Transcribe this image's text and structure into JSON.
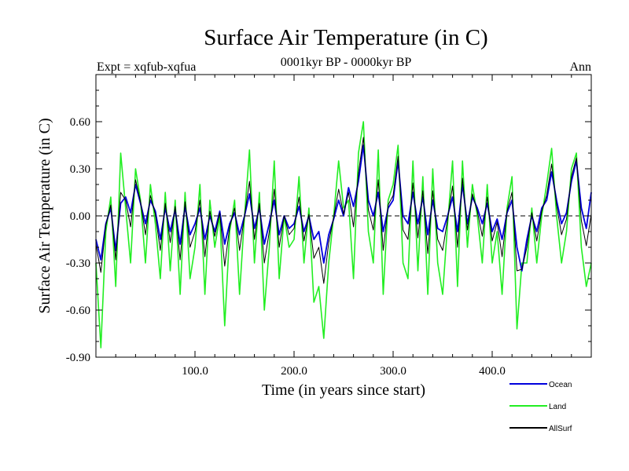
{
  "chart_data": {
    "type": "line",
    "title": "Surface Air Temperature (in C)",
    "subtitle": "0001kyr BP - 0000kyr BP",
    "left_label": "Expt = xqfub-xqfua",
    "right_label": "Ann",
    "xlabel": "Time (in years since start)",
    "ylabel": "Surface Air Temperature (in C)",
    "xlim": [
      0,
      500
    ],
    "ylim": [
      -0.9,
      0.9
    ],
    "x_ticks": [
      100,
      200,
      300,
      400
    ],
    "x_tick_labels": [
      "100.0",
      "200.0",
      "300.0",
      "400.0"
    ],
    "y_ticks": [
      -0.9,
      -0.6,
      -0.3,
      0.0,
      0.3,
      0.6
    ],
    "y_tick_labels": [
      "-0.90",
      "-0.60",
      "-0.30",
      "0.00",
      "0.30",
      "0.60"
    ],
    "zero_line": true,
    "legend_position": "bottom-right",
    "series": [
      {
        "name": "Ocean",
        "color": "#0000dd",
        "x": [
          0,
          5,
          10,
          15,
          20,
          25,
          30,
          35,
          40,
          45,
          50,
          55,
          60,
          65,
          70,
          75,
          80,
          85,
          90,
          95,
          100,
          105,
          110,
          115,
          120,
          125,
          130,
          135,
          140,
          145,
          150,
          155,
          160,
          165,
          170,
          175,
          180,
          185,
          190,
          195,
          200,
          205,
          210,
          215,
          220,
          225,
          230,
          235,
          240,
          245,
          250,
          255,
          260,
          265,
          270,
          275,
          280,
          285,
          290,
          295,
          300,
          305,
          310,
          315,
          320,
          325,
          330,
          335,
          340,
          345,
          350,
          355,
          360,
          365,
          370,
          375,
          380,
          385,
          390,
          395,
          400,
          405,
          410,
          415,
          420,
          425,
          430,
          435,
          440,
          445,
          450,
          455,
          460,
          465,
          470,
          475,
          480,
          485,
          490,
          495,
          500
        ],
        "values": [
          -0.15,
          -0.28,
          -0.05,
          0.05,
          -0.22,
          0.08,
          0.12,
          0.02,
          0.2,
          0.08,
          -0.05,
          0.1,
          0.03,
          -0.15,
          0.05,
          -0.1,
          0.04,
          -0.18,
          0.06,
          -0.12,
          -0.05,
          0.05,
          -0.15,
          0.0,
          -0.1,
          0.03,
          -0.18,
          -0.05,
          0.02,
          -0.12,
          0.0,
          0.14,
          -0.08,
          0.05,
          -0.18,
          -0.05,
          0.1,
          -0.12,
          0.0,
          -0.08,
          -0.05,
          0.06,
          -0.1,
          0.0,
          -0.15,
          -0.1,
          -0.3,
          -0.12,
          -0.02,
          0.1,
          0.0,
          0.18,
          0.06,
          0.22,
          0.45,
          0.1,
          0.0,
          0.15,
          -0.1,
          0.05,
          0.1,
          0.35,
          0.0,
          -0.05,
          0.15,
          -0.05,
          0.12,
          -0.12,
          0.1,
          -0.08,
          -0.1,
          0.0,
          0.12,
          -0.1,
          0.2,
          -0.05,
          0.12,
          0.05,
          -0.05,
          0.08,
          -0.1,
          -0.02,
          -0.15,
          0.02,
          0.1,
          -0.2,
          -0.35,
          -0.15,
          0.0,
          -0.1,
          0.05,
          0.1,
          0.28,
          0.1,
          -0.05,
          0.02,
          0.22,
          0.35,
          0.05,
          -0.08,
          0.15
        ]
      },
      {
        "name": "Land",
        "color": "#22ee22",
        "x": [
          0,
          5,
          10,
          15,
          20,
          25,
          30,
          35,
          40,
          45,
          50,
          55,
          60,
          65,
          70,
          75,
          80,
          85,
          90,
          95,
          100,
          105,
          110,
          115,
          120,
          125,
          130,
          135,
          140,
          145,
          150,
          155,
          160,
          165,
          170,
          175,
          180,
          185,
          190,
          195,
          200,
          205,
          210,
          215,
          220,
          225,
          230,
          235,
          240,
          245,
          250,
          255,
          260,
          265,
          270,
          275,
          280,
          285,
          290,
          295,
          300,
          305,
          310,
          315,
          320,
          325,
          330,
          335,
          340,
          345,
          350,
          355,
          360,
          365,
          370,
          375,
          380,
          385,
          390,
          395,
          400,
          405,
          410,
          415,
          420,
          425,
          430,
          435,
          440,
          445,
          450,
          455,
          460,
          465,
          470,
          475,
          480,
          485,
          490,
          495,
          500
        ],
        "values": [
          -0.3,
          -0.84,
          -0.1,
          0.12,
          -0.45,
          0.4,
          0.05,
          -0.3,
          0.3,
          0.1,
          -0.3,
          0.2,
          -0.05,
          -0.4,
          0.15,
          -0.35,
          0.1,
          -0.5,
          0.15,
          -0.4,
          -0.2,
          0.2,
          -0.5,
          0.1,
          -0.2,
          0.0,
          -0.7,
          -0.1,
          0.1,
          -0.5,
          0.0,
          0.42,
          -0.3,
          0.15,
          -0.6,
          -0.2,
          0.35,
          -0.4,
          0.0,
          -0.2,
          -0.15,
          0.25,
          -0.3,
          0.05,
          -0.55,
          -0.45,
          -0.78,
          -0.3,
          0.0,
          0.35,
          0.05,
          0.1,
          -0.4,
          0.4,
          0.6,
          -0.1,
          -0.3,
          0.42,
          -0.5,
          0.1,
          0.2,
          0.45,
          -0.3,
          -0.4,
          0.35,
          -0.35,
          0.25,
          -0.5,
          0.3,
          -0.3,
          -0.5,
          -0.05,
          0.35,
          -0.45,
          0.35,
          -0.2,
          0.2,
          0.0,
          -0.3,
          0.2,
          -0.3,
          -0.1,
          -0.5,
          0.05,
          0.25,
          -0.72,
          -0.3,
          -0.3,
          0.05,
          -0.3,
          0.0,
          0.2,
          0.43,
          0.0,
          -0.3,
          -0.1,
          0.3,
          0.4,
          -0.2,
          -0.45,
          -0.3
        ]
      },
      {
        "name": "AllSurf",
        "color": "#000000",
        "x": [
          0,
          5,
          10,
          15,
          20,
          25,
          30,
          35,
          40,
          45,
          50,
          55,
          60,
          65,
          70,
          75,
          80,
          85,
          90,
          95,
          100,
          105,
          110,
          115,
          120,
          125,
          130,
          135,
          140,
          145,
          150,
          155,
          160,
          165,
          170,
          175,
          180,
          185,
          190,
          195,
          200,
          205,
          210,
          215,
          220,
          225,
          230,
          235,
          240,
          245,
          250,
          255,
          260,
          265,
          270,
          275,
          280,
          285,
          290,
          295,
          300,
          305,
          310,
          315,
          320,
          325,
          330,
          335,
          340,
          345,
          350,
          355,
          360,
          365,
          370,
          375,
          380,
          385,
          390,
          395,
          400,
          405,
          410,
          415,
          420,
          425,
          430,
          435,
          440,
          445,
          450,
          455,
          460,
          465,
          470,
          475,
          480,
          485,
          490,
          495,
          500
        ],
        "values": [
          -0.18,
          -0.36,
          -0.06,
          0.07,
          -0.28,
          0.15,
          0.1,
          -0.07,
          0.23,
          0.09,
          -0.12,
          0.13,
          0.01,
          -0.22,
          0.08,
          -0.17,
          0.06,
          -0.28,
          0.09,
          -0.2,
          -0.1,
          0.1,
          -0.26,
          0.03,
          -0.13,
          0.02,
          -0.32,
          -0.07,
          0.05,
          -0.22,
          0.0,
          0.22,
          -0.15,
          0.08,
          -0.3,
          -0.1,
          0.17,
          -0.2,
          0.0,
          -0.12,
          -0.08,
          0.12,
          -0.16,
          0.01,
          -0.27,
          -0.2,
          -0.43,
          -0.17,
          -0.01,
          0.17,
          0.01,
          0.15,
          -0.07,
          0.27,
          0.5,
          0.04,
          -0.09,
          0.23,
          -0.22,
          0.07,
          0.13,
          0.38,
          -0.09,
          -0.15,
          0.21,
          -0.14,
          0.16,
          -0.24,
          0.16,
          -0.15,
          -0.22,
          -0.02,
          0.19,
          -0.2,
          0.24,
          -0.09,
          0.14,
          0.03,
          -0.13,
          0.12,
          -0.16,
          -0.04,
          -0.26,
          0.03,
          0.15,
          -0.35,
          -0.34,
          -0.2,
          0.02,
          -0.16,
          0.03,
          0.13,
          0.33,
          0.07,
          -0.12,
          -0.02,
          0.25,
          0.37,
          -0.03,
          -0.19,
          0.01
        ]
      }
    ]
  }
}
